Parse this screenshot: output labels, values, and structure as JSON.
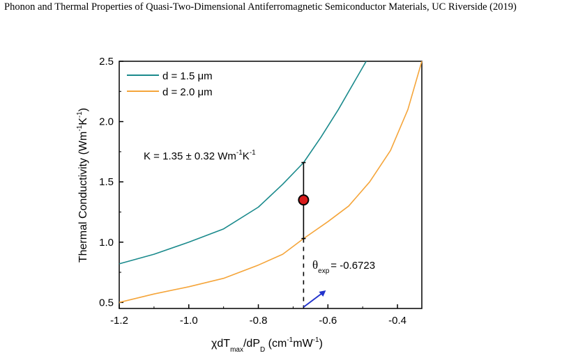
{
  "caption": "Phonon and Thermal Properties of Quasi-Two-Dimensional Antiferromagnetic Semiconductor Materials, UC Riverside (2019)",
  "colors": {
    "series1": "#1a8a8c",
    "series2": "#f5a53a",
    "marker_fill": "#d81b1b",
    "arrow": "#2233cc"
  },
  "chart_data": {
    "type": "line",
    "xlabel": "χdT_max/dP_D (cm⁻¹mW⁻¹)",
    "ylabel": "Thermal Conductivity (Wm⁻¹K⁻¹)",
    "xlim": [
      -1.2,
      -0.33
    ],
    "ylim": [
      0.45,
      2.5
    ],
    "xticks": [
      -1.2,
      -1.0,
      -0.8,
      -0.6,
      -0.4
    ],
    "xtick_labels": [
      "-1.2",
      "-1.0",
      "-0.8",
      "-0.6",
      "-0.4"
    ],
    "yticks": [
      0.5,
      1.0,
      1.5,
      2.0,
      2.5
    ],
    "ytick_labels": [
      "0.5",
      "1.0",
      "1.5",
      "2.0",
      "2.5"
    ],
    "legend_position": "top-left",
    "series": [
      {
        "name": "d = 1.5 μm",
        "x": [
          -1.2,
          -1.1,
          -1.0,
          -0.9,
          -0.8,
          -0.73,
          -0.67,
          -0.62,
          -0.57,
          -0.52,
          -0.49
        ],
        "y": [
          0.82,
          0.9,
          1.0,
          1.11,
          1.29,
          1.48,
          1.66,
          1.87,
          2.1,
          2.35,
          2.5
        ]
      },
      {
        "name": "d = 2.0 μm",
        "x": [
          -1.2,
          -1.1,
          -1.0,
          -0.9,
          -0.8,
          -0.73,
          -0.67,
          -0.6,
          -0.54,
          -0.48,
          -0.42,
          -0.37,
          -0.33
        ],
        "y": [
          0.5,
          0.57,
          0.63,
          0.7,
          0.81,
          0.9,
          1.03,
          1.17,
          1.3,
          1.5,
          1.76,
          2.1,
          2.5
        ]
      }
    ],
    "measurement": {
      "x": -0.67,
      "y": 1.35,
      "y_low": 1.03,
      "y_high": 1.66
    },
    "annotations": {
      "k_text_prefix": "K = 1.35 ± 0.32 Wm",
      "k_exp1": "-1",
      "k_mid": "K",
      "k_exp2": "-1",
      "theta_symbol": "θ",
      "theta_sub": "exp",
      "theta_value": "= -0.6723"
    },
    "axis_titles": {
      "x_chi": "χdT",
      "x_sub1": "max",
      "x_mid": "/dP",
      "x_sub2": "D",
      "x_units_open": " (cm",
      "x_sup1": "-1",
      "x_units_mid": "mW",
      "x_sup2": "-1",
      "x_units_close": ")",
      "y_main": "Thermal Conductivity (Wm",
      "y_sup1": "-1",
      "y_mid": "K",
      "y_sup2": "-1",
      "y_close": ")"
    }
  }
}
